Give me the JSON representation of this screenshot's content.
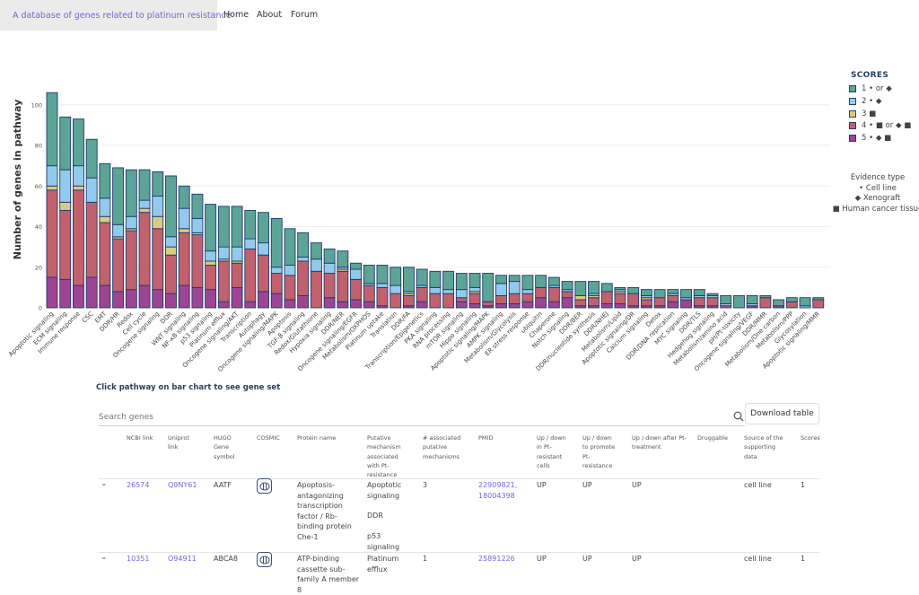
{
  "header": {
    "site_title": "A database of genes related to platinum resistance",
    "nav": [
      "Home",
      "About",
      "Forum"
    ],
    "brand_color": "#7b62d4"
  },
  "legend": {
    "title": "SCORES",
    "items": [
      {
        "label": "1 • or ◆",
        "color": "#5ba497"
      },
      {
        "label": "2 • ◆",
        "color": "#93c9ec"
      },
      {
        "label": "3 ■",
        "color": "#dccb7c"
      },
      {
        "label": "4 • ■ or ◆ ■",
        "color": "#c0616d"
      },
      {
        "label": "5 • ◆ ■",
        "color": "#9c4595"
      }
    ],
    "evidence_title": "Evidence type",
    "evidence": [
      "• Cell line",
      "◆ Xenograft",
      "■ Human cancer tissue"
    ]
  },
  "chart_data": {
    "type": "bar",
    "stacked": true,
    "ylabel": "Number of genes in pathway",
    "xlabel": "",
    "ylim": [
      0,
      106
    ],
    "yticks": [
      0,
      20,
      40,
      60,
      80,
      100
    ],
    "grid": true,
    "legend_position": "top-right",
    "categories": [
      "Apoptotic signaling",
      "ECM signaling",
      "Immune response",
      "CSC",
      "EMT",
      "DDR/HR",
      "Redox",
      "Cell cycle",
      "Oncogene signaling",
      "DDR",
      "WNT signaling",
      "NF-κB signaling",
      "p53 signaling",
      "Platinum efflux",
      "Oncogene signaling/AKT",
      "Transcription",
      "Autophagy",
      "Oncogene signaling/MAPK",
      "Apoptosis",
      "TGF-β signaling",
      "Redox/Glutathione",
      "Hypoxia signaling",
      "DDR/NER",
      "Oncogene signaling/EGFR",
      "Metabolism/OXPHOS",
      "Platinum uptake",
      "Translation",
      "DDR/FA",
      "Transcription/Epigenetics",
      "PKA signaling",
      "RNA processing",
      "mTOR signaling",
      "Hippo signaling",
      "Apoptotic signaling/MAPK",
      "AMPK signaling",
      "Metabolism/Glycolysis",
      "ER stress response",
      "ubiquitin",
      "Chaperone",
      "Notch signaling",
      "DDR/BER",
      "DDR/nucleotide synthesis",
      "DDR/NHEJ",
      "Metabolism/Lipid",
      "Apoptotic signaling/DR",
      "Calcium signaling",
      "Detox",
      "DDR/DNA replication",
      "MYC signaling",
      "DDR/TLS",
      "Hedgehog signaling",
      "Metabolism/amino acid",
      "pH/Pt-toxicity",
      "Oncogene signaling/VEGF",
      "DDR/MMR",
      "Metabolism/One carbon",
      "Metabolism/PPP",
      "Glycosylation",
      "Apoptotic signaling/MMR"
    ],
    "series": [
      {
        "name": "5",
        "values": [
          15,
          14,
          11,
          15,
          11,
          8,
          9,
          11,
          9,
          7,
          11,
          10,
          9,
          3,
          10,
          3,
          8,
          7,
          4,
          6,
          0,
          5,
          3,
          4,
          3,
          1,
          0,
          1,
          3,
          0,
          0,
          3,
          2,
          1,
          2,
          2,
          3,
          5,
          3,
          5,
          1,
          1,
          2,
          2,
          1,
          1,
          1,
          3,
          4,
          1,
          1,
          0,
          0,
          1,
          0,
          1,
          0,
          0,
          0
        ]
      },
      {
        "name": "4",
        "values": [
          43,
          34,
          47,
          37,
          31,
          26,
          29,
          36,
          30,
          19,
          26,
          26,
          12,
          20,
          12,
          26,
          18,
          10,
          12,
          17,
          18,
          12,
          15,
          10,
          8,
          9,
          7,
          5,
          7,
          7,
          7,
          2,
          5,
          2,
          4,
          5,
          4,
          5,
          7,
          3,
          3,
          4,
          6,
          5,
          6,
          3,
          4,
          3,
          0,
          4,
          4,
          1,
          0,
          0,
          5,
          0,
          3,
          0,
          4
        ]
      },
      {
        "name": "3",
        "values": [
          2,
          4,
          2,
          0,
          3,
          1,
          1,
          2,
          6,
          4,
          2,
          1,
          2,
          1,
          1,
          0,
          0,
          0,
          0,
          0,
          0,
          0,
          1,
          0,
          0,
          0,
          0,
          1,
          0,
          0,
          0,
          0,
          1,
          0,
          0,
          0,
          0,
          0,
          0,
          0,
          2,
          1,
          0,
          1,
          0,
          1,
          0,
          0,
          0,
          0,
          0,
          0,
          0,
          0,
          0,
          0,
          0,
          0,
          0
        ]
      },
      {
        "name": "2",
        "values": [
          10,
          16,
          10,
          12,
          9,
          6,
          6,
          4,
          10,
          5,
          10,
          7,
          5,
          6,
          7,
          5,
          6,
          3,
          5,
          2,
          6,
          5,
          1,
          5,
          1,
          2,
          4,
          1,
          1,
          3,
          2,
          4,
          2,
          0,
          6,
          6,
          2,
          0,
          1,
          1,
          0,
          1,
          0,
          1,
          0,
          1,
          0,
          1,
          1,
          1,
          1,
          1,
          0,
          1,
          0,
          0,
          0,
          1,
          0
        ]
      },
      {
        "name": "1",
        "values": [
          36,
          26,
          23,
          19,
          17,
          28,
          23,
          15,
          12,
          30,
          11,
          12,
          23,
          20,
          20,
          14,
          15,
          24,
          18,
          12,
          8,
          7,
          8,
          3,
          9,
          9,
          9,
          12,
          8,
          8,
          9,
          8,
          7,
          14,
          4,
          3,
          7,
          6,
          4,
          4,
          7,
          6,
          4,
          1,
          3,
          3,
          4,
          2,
          4,
          3,
          1,
          4,
          6,
          4,
          1,
          3,
          2,
          4,
          1
        ]
      }
    ]
  },
  "table": {
    "hint": "Click pathway on bar chart to see gene set",
    "search_placeholder": "Search genes",
    "download_label": "Download table",
    "columns": [
      "NCBI link",
      "Uniprot link",
      "HUGO Gene symbol",
      "COSMIC",
      "Protein name",
      "Putative mechanism associated with Pt-resistance",
      "# associated putative mechanisms",
      "PMID",
      "Up / down in Pt-resistant cells",
      "Up / down to promote Pt-resistance",
      "Up / down after Pt-treatment",
      "Druggable",
      "Source of the supporting data",
      "Scores"
    ],
    "rows": [
      {
        "ncbi": "26574",
        "uniprot": "Q9NY61",
        "hugo": "AATF",
        "protein": "Apoptosis-antagonizing transcription factor / Rb-binding protein Che-1",
        "mech1": "Apoptotic signaling",
        "mech2": "DDR",
        "mech3": "p53 signaling",
        "count": "3",
        "pmid": "22909821, 18004398",
        "resistant": "UP",
        "promote": "UP",
        "after": "UP",
        "druggable": "",
        "source": "cell line",
        "score": "1"
      },
      {
        "ncbi": "10351",
        "uniprot": "O94911",
        "hugo": "ABCA8",
        "protein": "ATP-binding cassette sub-family A member 8",
        "mech1": "Platinum efflux",
        "mech2": "",
        "mech3": "",
        "count": "1",
        "pmid": "25891226",
        "resistant": "UP",
        "promote": "UP",
        "after": "UP",
        "druggable": "",
        "source": "cell line",
        "score": "1"
      }
    ]
  }
}
